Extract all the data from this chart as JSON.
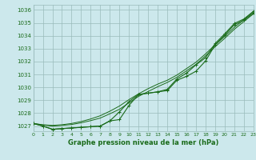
{
  "title": "Graphe pression niveau de la mer (hPa)",
  "background_color": "#cce8ec",
  "grid_color": "#99bbbb",
  "line_color": "#1a6b1a",
  "text_color": "#1a6b1a",
  "xlim": [
    0,
    23
  ],
  "ylim": [
    1026.6,
    1036.4
  ],
  "yticks": [
    1027,
    1028,
    1029,
    1030,
    1031,
    1032,
    1033,
    1034,
    1035,
    1036
  ],
  "xticks": [
    0,
    1,
    2,
    3,
    4,
    5,
    6,
    7,
    8,
    9,
    10,
    11,
    12,
    13,
    14,
    15,
    16,
    17,
    18,
    19,
    20,
    21,
    22,
    23
  ],
  "hours": [
    0,
    1,
    2,
    3,
    4,
    5,
    6,
    7,
    8,
    9,
    10,
    11,
    12,
    13,
    14,
    15,
    16,
    17,
    18,
    19,
    20,
    21,
    22,
    23
  ],
  "line_marked1": [
    1027.2,
    1027.0,
    1026.75,
    1026.8,
    1026.85,
    1026.9,
    1026.95,
    1027.0,
    1027.4,
    1027.5,
    1028.6,
    1029.45,
    1029.55,
    1029.65,
    1029.75,
    1030.55,
    1030.85,
    1031.25,
    1032.05,
    1033.3,
    1034.05,
    1034.85,
    1035.2,
    1035.75
  ],
  "line_marked2": [
    1027.2,
    1027.0,
    1026.75,
    1026.8,
    1026.85,
    1026.9,
    1026.95,
    1027.0,
    1027.4,
    1028.1,
    1028.9,
    1029.45,
    1029.55,
    1029.65,
    1029.85,
    1030.65,
    1031.1,
    1031.75,
    1032.3,
    1033.4,
    1034.15,
    1034.95,
    1035.3,
    1035.9
  ],
  "line_smooth1": [
    1027.2,
    1027.1,
    1027.05,
    1027.1,
    1027.2,
    1027.35,
    1027.55,
    1027.8,
    1028.15,
    1028.55,
    1029.05,
    1029.5,
    1029.9,
    1030.25,
    1030.55,
    1030.95,
    1031.45,
    1031.95,
    1032.6,
    1033.3,
    1033.95,
    1034.65,
    1035.25,
    1035.85
  ],
  "line_smooth2": [
    1027.2,
    1027.08,
    1027.0,
    1027.05,
    1027.12,
    1027.25,
    1027.42,
    1027.62,
    1027.95,
    1028.3,
    1028.8,
    1029.3,
    1029.68,
    1030.05,
    1030.38,
    1030.78,
    1031.28,
    1031.78,
    1032.45,
    1033.15,
    1033.8,
    1034.5,
    1035.1,
    1035.7
  ]
}
